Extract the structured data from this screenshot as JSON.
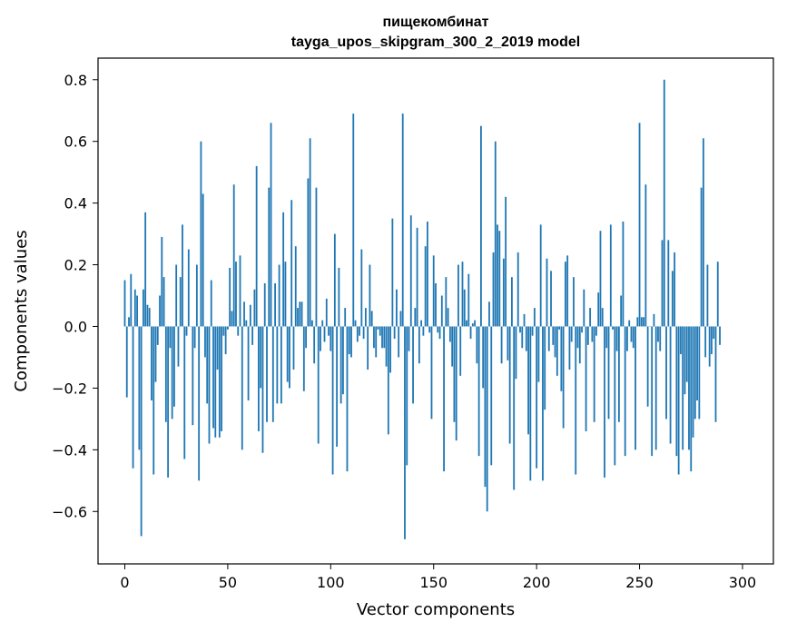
{
  "chart_data": {
    "type": "bar",
    "title": "пищекомбинат",
    "subtitle": "tayga_upos_skipgram_300_2_2019 model",
    "xlabel": "Vector components",
    "ylabel": "Components values",
    "xlim": [
      -13,
      315
    ],
    "ylim": [
      -0.77,
      0.87
    ],
    "xticks": [
      0,
      50,
      100,
      150,
      200,
      250,
      300
    ],
    "yticks": [
      -0.6,
      -0.4,
      -0.2,
      0.0,
      0.2,
      0.4,
      0.6,
      0.8
    ],
    "ytick_labels": [
      "−0.6",
      "−0.4",
      "−0.2",
      "0.0",
      "0.2",
      "0.4",
      "0.6",
      "0.8"
    ],
    "bar_color": "#1f77b4",
    "values": [
      0.15,
      -0.23,
      0.03,
      0.17,
      -0.46,
      0.12,
      0.1,
      -0.4,
      -0.68,
      0.12,
      0.37,
      0.07,
      0.06,
      -0.24,
      -0.48,
      -0.18,
      -0.06,
      0.1,
      0.29,
      0.16,
      -0.31,
      -0.49,
      -0.07,
      -0.3,
      -0.26,
      0.2,
      -0.13,
      0.16,
      0.33,
      -0.43,
      -0.03,
      0.25,
      0.0,
      -0.32,
      -0.07,
      0.2,
      -0.5,
      0.6,
      0.43,
      -0.1,
      -0.25,
      -0.38,
      0.15,
      -0.33,
      -0.36,
      -0.14,
      -0.36,
      -0.34,
      -0.03,
      -0.09,
      -0.01,
      0.19,
      0.05,
      0.46,
      0.21,
      -0.03,
      0.23,
      -0.4,
      0.08,
      0.02,
      -0.24,
      0.07,
      -0.06,
      0.12,
      0.52,
      -0.34,
      -0.2,
      -0.41,
      0.14,
      -0.31,
      0.45,
      0.66,
      -0.31,
      0.14,
      -0.25,
      0.2,
      -0.25,
      0.37,
      0.21,
      -0.18,
      -0.2,
      0.41,
      -0.14,
      0.26,
      0.06,
      0.08,
      0.08,
      -0.21,
      -0.07,
      0.48,
      0.61,
      0.02,
      -0.12,
      0.45,
      -0.38,
      -0.08,
      0.02,
      -0.05,
      0.09,
      -0.03,
      -0.08,
      -0.48,
      0.3,
      -0.39,
      0.19,
      -0.25,
      -0.22,
      0.06,
      -0.47,
      -0.09,
      -0.1,
      0.69,
      0.02,
      -0.05,
      -0.03,
      0.25,
      -0.04,
      0.06,
      -0.14,
      0.2,
      0.05,
      -0.07,
      -0.1,
      -0.01,
      -0.03,
      -0.07,
      -0.07,
      -0.13,
      -0.35,
      -0.15,
      0.35,
      -0.04,
      0.12,
      -0.1,
      0.05,
      0.69,
      -0.69,
      -0.45,
      -0.08,
      0.36,
      -0.25,
      0.06,
      0.32,
      -0.12,
      0.02,
      -0.03,
      0.26,
      0.34,
      -0.02,
      -0.3,
      0.23,
      0.14,
      -0.02,
      -0.04,
      0.1,
      -0.47,
      0.16,
      0.06,
      -0.05,
      -0.13,
      -0.31,
      -0.37,
      0.2,
      -0.16,
      0.21,
      0.12,
      0.02,
      0.17,
      -0.04,
      0.01,
      0.02,
      -0.12,
      -0.42,
      0.65,
      -0.2,
      -0.52,
      -0.6,
      0.08,
      -0.45,
      0.24,
      0.6,
      0.33,
      0.31,
      -0.12,
      0.22,
      0.42,
      -0.11,
      -0.38,
      0.16,
      -0.53,
      -0.17,
      0.24,
      -0.02,
      -0.07,
      0.04,
      -0.08,
      -0.35,
      -0.5,
      -0.03,
      0.06,
      -0.46,
      -0.18,
      0.33,
      -0.5,
      -0.27,
      0.22,
      -0.08,
      0.18,
      -0.06,
      -0.1,
      -0.16,
      -0.01,
      -0.21,
      -0.33,
      0.21,
      0.23,
      -0.14,
      -0.05,
      0.16,
      -0.48,
      -0.07,
      -0.12,
      -0.02,
      0.12,
      -0.34,
      -0.06,
      0.06,
      -0.05,
      -0.31,
      -0.03,
      0.11,
      0.31,
      0.06,
      -0.49,
      -0.07,
      -0.3,
      0.33,
      -0.01,
      -0.45,
      -0.08,
      -0.31,
      0.1,
      0.34,
      -0.42,
      -0.08,
      0.02,
      -0.05,
      -0.07,
      -0.4,
      0.03,
      0.66,
      0.03,
      0.03,
      0.46,
      -0.26,
      0.0,
      -0.42,
      0.04,
      -0.4,
      -0.05,
      -0.08,
      0.28,
      0.8,
      -0.3,
      0.28,
      -0.38,
      0.18,
      0.24,
      -0.42,
      -0.48,
      -0.09,
      -0.4,
      -0.22,
      -0.18,
      -0.4,
      -0.47,
      -0.36,
      -0.3,
      -0.24,
      -0.3,
      0.45,
      0.61,
      -0.1,
      0.2,
      -0.13,
      -0.09,
      -0.04,
      -0.31,
      0.21,
      -0.06
    ]
  }
}
